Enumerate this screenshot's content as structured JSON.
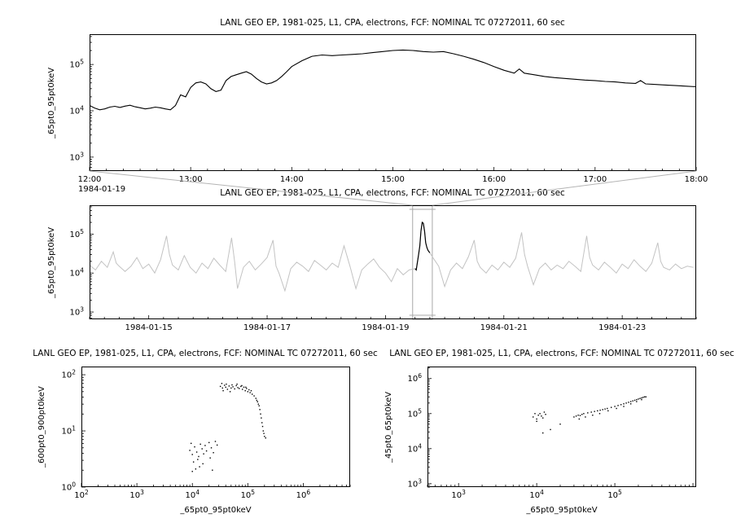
{
  "window": {
    "background": "#ffffff"
  },
  "colors": {
    "foreground": "#000000",
    "context_line": "#c3c3c3",
    "selection_box": "#a8a8a8",
    "connector": "#b4b4b4"
  },
  "chart_data": [
    {
      "id": "overview-zoom",
      "type": "line",
      "title": "LANL GEO EP, 1981-025, L1, CPA, electrons, FCF: NOMINAL TC 07272011, 60 sec",
      "ylabel": "_65pt0_95pt0keV",
      "x_axis": {
        "type": "linear",
        "min": 12,
        "max": 18,
        "minor_step": 0.1666667,
        "major": [
          {
            "v": 12,
            "label": "12:00",
            "label2": "1984-01-19"
          },
          {
            "v": 13,
            "label": "13:00"
          },
          {
            "v": 14,
            "label": "14:00"
          },
          {
            "v": 15,
            "label": "15:00"
          },
          {
            "v": 16,
            "label": "16:00"
          },
          {
            "v": 17,
            "label": "17:00"
          },
          {
            "v": 18,
            "label": "18:00"
          }
        ]
      },
      "y_axis": {
        "type": "log",
        "min": 500,
        "max": 450000,
        "exps": [
          3,
          4,
          5
        ]
      },
      "series": [
        {
          "name": "_65pt0_95pt0keV",
          "type": "line",
          "color": "#000000",
          "width": 1.1,
          "x": [
            12.0,
            12.05,
            12.1,
            12.15,
            12.2,
            12.25,
            12.3,
            12.35,
            12.4,
            12.45,
            12.5,
            12.55,
            12.6,
            12.65,
            12.7,
            12.75,
            12.8,
            12.85,
            12.9,
            12.95,
            13.0,
            13.05,
            13.1,
            13.15,
            13.2,
            13.25,
            13.3,
            13.35,
            13.4,
            13.45,
            13.5,
            13.55,
            13.6,
            13.65,
            13.7,
            13.75,
            13.8,
            13.85,
            13.9,
            13.95,
            14.0,
            14.1,
            14.2,
            14.3,
            14.4,
            14.5,
            14.6,
            14.7,
            14.8,
            14.9,
            15.0,
            15.1,
            15.2,
            15.3,
            15.4,
            15.5,
            15.6,
            15.7,
            15.8,
            15.9,
            16.0,
            16.1,
            16.2,
            16.25,
            16.3,
            16.4,
            16.5,
            16.6,
            16.7,
            16.8,
            16.9,
            17.0,
            17.1,
            17.2,
            17.3,
            17.4,
            17.45,
            17.5,
            17.6,
            17.7,
            17.8,
            17.9,
            18.0
          ],
          "y": [
            13000,
            11500,
            10500,
            11000,
            12000,
            12500,
            11800,
            12600,
            13200,
            12200,
            11600,
            11000,
            11400,
            12000,
            11600,
            11000,
            10500,
            13000,
            22000,
            20000,
            32000,
            40000,
            42000,
            38000,
            30000,
            26000,
            28000,
            45000,
            55000,
            60000,
            65000,
            70000,
            62000,
            50000,
            42000,
            38000,
            40000,
            45000,
            55000,
            70000,
            90000,
            120000,
            150000,
            160000,
            155000,
            160000,
            165000,
            170000,
            180000,
            190000,
            200000,
            205000,
            200000,
            190000,
            185000,
            190000,
            170000,
            150000,
            130000,
            110000,
            90000,
            75000,
            65000,
            80000,
            65000,
            60000,
            55000,
            52000,
            50000,
            48000,
            46000,
            45000,
            43000,
            42000,
            40000,
            39000,
            45000,
            38000,
            37000,
            36000,
            35000,
            34000,
            33000
          ]
        }
      ]
    },
    {
      "id": "context",
      "type": "line",
      "title": "LANL GEO EP, 1981-025, L1, CPA, electrons, FCF: NOMINAL TC 07272011, 60 sec",
      "ylabel": "_65pt0_95pt0keV",
      "x_axis": {
        "type": "linear",
        "min": 0,
        "max": 10.25,
        "minor_step": 0.25,
        "major": [
          {
            "v": 1,
            "label": "1984-01-15"
          },
          {
            "v": 3,
            "label": "1984-01-17"
          },
          {
            "v": 5,
            "label": "1984-01-19"
          },
          {
            "v": 7,
            "label": "1984-01-21"
          },
          {
            "v": 9,
            "label": "1984-01-23"
          }
        ]
      },
      "y_axis": {
        "type": "log",
        "min": 650,
        "max": 550000,
        "exps": [
          3,
          4,
          5
        ]
      },
      "selection": {
        "from": 5.5,
        "to": 5.75
      },
      "series": [
        {
          "name": "context-full",
          "type": "line",
          "color": "#c3c3c3",
          "width": 1,
          "x": [
            0.0,
            0.1,
            0.2,
            0.3,
            0.4,
            0.45,
            0.5,
            0.6,
            0.7,
            0.8,
            0.9,
            1.0,
            1.1,
            1.2,
            1.3,
            1.35,
            1.4,
            1.5,
            1.6,
            1.7,
            1.8,
            1.9,
            2.0,
            2.1,
            2.2,
            2.3,
            2.4,
            2.45,
            2.5,
            2.6,
            2.7,
            2.8,
            2.9,
            3.0,
            3.1,
            3.15,
            3.2,
            3.3,
            3.4,
            3.5,
            3.6,
            3.7,
            3.8,
            3.9,
            4.0,
            4.1,
            4.2,
            4.3,
            4.4,
            4.5,
            4.6,
            4.7,
            4.8,
            4.9,
            5.0,
            5.1,
            5.2,
            5.3,
            5.4,
            5.5,
            5.52,
            5.56,
            5.58,
            5.6,
            5.62,
            5.64,
            5.66,
            5.68,
            5.7,
            5.72,
            5.75,
            5.8,
            5.9,
            6.0,
            6.1,
            6.2,
            6.3,
            6.4,
            6.5,
            6.55,
            6.6,
            6.7,
            6.8,
            6.9,
            7.0,
            7.1,
            7.2,
            7.3,
            7.35,
            7.4,
            7.5,
            7.6,
            7.7,
            7.8,
            7.9,
            8.0,
            8.1,
            8.2,
            8.3,
            8.4,
            8.45,
            8.5,
            8.6,
            8.7,
            8.8,
            8.9,
            9.0,
            9.1,
            9.2,
            9.3,
            9.4,
            9.5,
            9.6,
            9.65,
            9.7,
            9.8,
            9.9,
            10.0,
            10.1,
            10.2
          ],
          "y": [
            16000,
            12000,
            20000,
            14000,
            35000,
            18000,
            15000,
            11000,
            15000,
            25000,
            13000,
            17000,
            10000,
            22000,
            90000,
            30000,
            16000,
            12000,
            28000,
            14000,
            10000,
            18000,
            13000,
            24000,
            16000,
            11000,
            80000,
            20000,
            4000,
            14000,
            20000,
            12000,
            17000,
            25000,
            70000,
            15000,
            10000,
            3500,
            13000,
            19000,
            15000,
            11000,
            21000,
            16000,
            12000,
            18000,
            14000,
            50000,
            15000,
            4000,
            12000,
            17000,
            23000,
            14000,
            10000,
            6000,
            13000,
            9000,
            12000,
            13000,
            12000,
            30000,
            50000,
            120000,
            200000,
            190000,
            120000,
            60000,
            45000,
            38000,
            33000,
            25000,
            15000,
            4500,
            12000,
            18000,
            13000,
            26000,
            70000,
            20000,
            14000,
            10000,
            16000,
            12000,
            19000,
            14000,
            24000,
            110000,
            30000,
            15000,
            5000,
            13000,
            18000,
            12000,
            16000,
            13000,
            20000,
            15000,
            11000,
            90000,
            25000,
            16000,
            12000,
            19000,
            14000,
            10000,
            17000,
            13000,
            22000,
            15000,
            11000,
            18000,
            60000,
            20000,
            14000,
            12000,
            17000,
            13000,
            15000,
            14000
          ]
        },
        {
          "name": "context-highlight",
          "type": "line",
          "color": "#000000",
          "width": 1.2,
          "x": [
            5.5,
            5.52,
            5.56,
            5.58,
            5.6,
            5.62,
            5.64,
            5.66,
            5.68,
            5.7,
            5.72,
            5.75
          ],
          "y": [
            13000,
            12000,
            30000,
            50000,
            120000,
            200000,
            190000,
            120000,
            60000,
            45000,
            38000,
            33000
          ]
        }
      ]
    },
    {
      "id": "scatter-600-900",
      "type": "scatter",
      "title": "LANL GEO EP, 1981-025, L1, CPA, electrons, FCF: NOMINAL TC 07272011, 60 sec",
      "xlabel": "_65pt0_95pt0keV",
      "ylabel": "_600pt0_900pt0keV",
      "x_axis": {
        "type": "log",
        "min": 100,
        "max": 7000000,
        "exps": [
          2,
          3,
          4,
          5,
          6
        ]
      },
      "y_axis": {
        "type": "log",
        "min": 1,
        "max": 140,
        "exps": [
          0,
          1,
          2
        ]
      },
      "series": [
        {
          "name": "600-900keV-vs-65-95keV",
          "type": "scatter",
          "color": "#000000",
          "x": [
            32000,
            35000,
            38000,
            40000,
            43000,
            46000,
            50000,
            54000,
            58000,
            62000,
            66000,
            70000,
            75000,
            80000,
            85000,
            90000,
            95000,
            100000,
            105000,
            110000,
            115000,
            120000,
            34000,
            41000,
            52000,
            64000,
            78000,
            92000,
            36000,
            48000,
            130000,
            140000,
            150000,
            160000,
            165000,
            170000,
            175000,
            180000,
            185000,
            190000,
            195000,
            200000,
            210000,
            155000,
            145000,
            9000,
            10000,
            11000,
            12000,
            13000,
            14000,
            15000,
            16000,
            17000,
            18000,
            20000,
            22000,
            24000,
            26000,
            28000,
            10500,
            12500,
            15500,
            21000,
            9500,
            10000,
            11500,
            13500,
            23000
          ],
          "y": [
            62,
            58,
            65,
            60,
            55,
            63,
            58,
            61,
            56,
            64,
            59,
            57,
            62,
            55,
            60,
            52,
            57,
            50,
            54,
            48,
            52,
            45,
            70,
            68,
            66,
            68,
            64,
            60,
            52,
            50,
            42,
            38,
            33,
            28,
            24,
            20,
            17,
            14,
            12,
            10,
            9,
            8,
            7.5,
            30,
            35,
            4.5,
            3.8,
            5.2,
            4.2,
            3.5,
            5.8,
            4.8,
            3.9,
            5.5,
            4.4,
            6.2,
            5.0,
            4.1,
            6.5,
            5.6,
            2.8,
            3.1,
            2.6,
            3.3,
            6.0,
            1.9,
            2.1,
            2.3,
            2.0
          ]
        }
      ]
    },
    {
      "id": "scatter-45-65",
      "type": "scatter",
      "title": "LANL GEO EP, 1981-025, L1, CPA, electrons, FCF: NOMINAL TC 07272011, 60 sec",
      "xlabel": "_65pt0_95pt0keV",
      "ylabel": "_45pt0_65pt0keV",
      "x_axis": {
        "type": "log",
        "min": 400,
        "max": 1100000,
        "exps": [
          3,
          4,
          5
        ]
      },
      "y_axis": {
        "type": "log",
        "min": 800,
        "max": 2200000,
        "exps": [
          3,
          4,
          5,
          6
        ]
      },
      "series": [
        {
          "name": "45-65keV-vs-65-95keV",
          "type": "scatter",
          "color": "#000000",
          "x": [
            9000,
            10000,
            10500,
            11000,
            11500,
            12000,
            12500,
            10000,
            9500,
            13000,
            12000,
            15000,
            20000,
            30000,
            32000,
            34000,
            36000,
            38000,
            40000,
            45000,
            50000,
            55000,
            60000,
            65000,
            70000,
            75000,
            80000,
            90000,
            100000,
            110000,
            120000,
            130000,
            140000,
            150000,
            160000,
            170000,
            180000,
            190000,
            200000,
            210000,
            220000,
            230000,
            240000,
            250000,
            35000,
            42000,
            52000,
            64000,
            82000,
            105000,
            130000,
            160000,
            190000,
            220000
          ],
          "y": [
            80000,
            70000,
            90000,
            100000,
            85000,
            75000,
            110000,
            60000,
            100000,
            95000,
            28000,
            35000,
            50000,
            80000,
            85000,
            90000,
            88000,
            95000,
            100000,
            105000,
            110000,
            115000,
            120000,
            125000,
            130000,
            135000,
            140000,
            150000,
            160000,
            170000,
            180000,
            190000,
            200000,
            210000,
            220000,
            230000,
            240000,
            250000,
            260000,
            270000,
            280000,
            290000,
            300000,
            300000,
            70000,
            80000,
            90000,
            100000,
            120000,
            140000,
            160000,
            190000,
            220000,
            250000
          ]
        }
      ]
    }
  ]
}
